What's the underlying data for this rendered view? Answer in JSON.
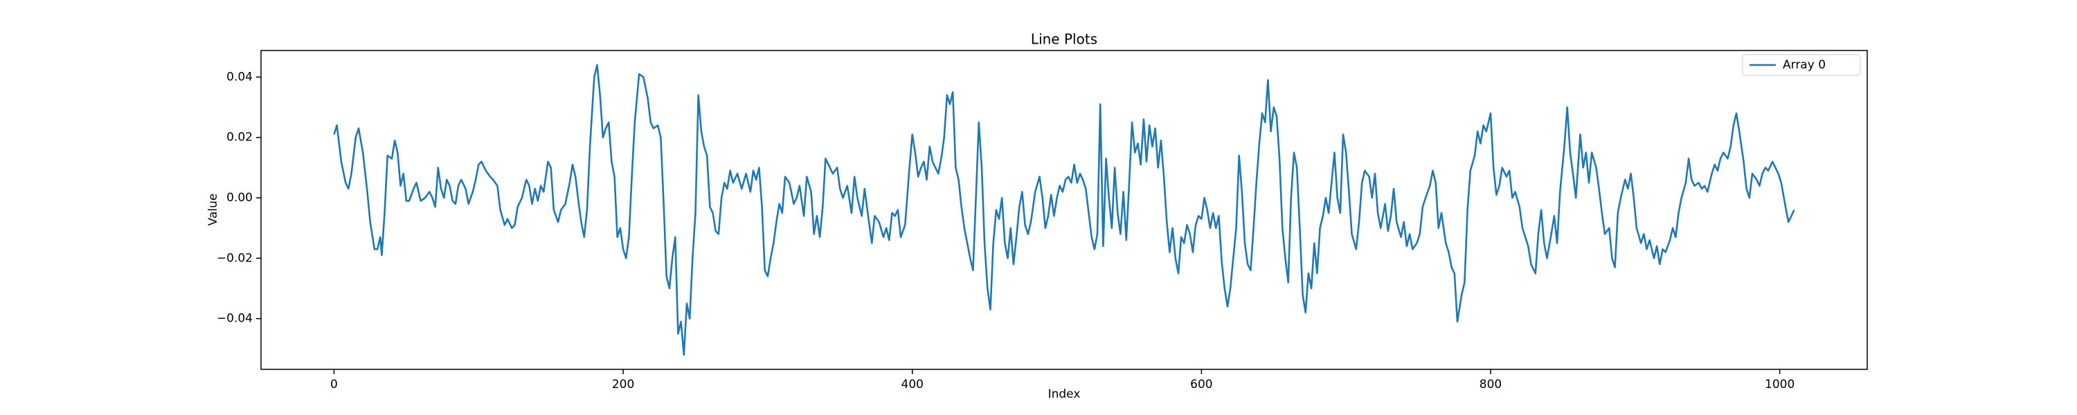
{
  "chart_data": {
    "type": "line",
    "title": "Line Plots",
    "xlabel": "Index",
    "ylabel": "Value",
    "xlim": [
      -50.5,
      1060.5
    ],
    "ylim": [
      -0.0568,
      0.0488
    ],
    "xticks": [
      0,
      200,
      400,
      600,
      800,
      1000
    ],
    "yticks": [
      {
        "value": -0.04,
        "label": "−0.04"
      },
      {
        "value": -0.02,
        "label": "−0.02"
      },
      {
        "value": 0,
        "label": "0.00"
      },
      {
        "value": 0.02,
        "label": "0.02"
      },
      {
        "value": 0.04,
        "label": "0.04"
      }
    ],
    "legend": "upper right",
    "grid": false,
    "x": [
      0,
      2,
      5,
      8,
      10,
      12,
      15,
      17,
      20,
      23,
      25,
      28,
      30,
      32,
      33,
      35,
      37,
      40,
      42,
      44,
      46,
      48,
      50,
      52,
      55,
      57,
      60,
      63,
      66,
      68,
      70,
      72,
      74,
      76,
      78,
      80,
      82,
      84,
      86,
      88,
      91,
      93,
      96,
      98,
      100,
      102,
      105,
      108,
      110,
      113,
      115,
      118,
      120,
      123,
      125,
      127,
      130,
      133,
      135,
      137,
      139,
      141,
      143,
      145,
      148,
      150,
      152,
      155,
      157,
      160,
      163,
      165,
      167,
      169,
      171,
      173,
      175,
      177,
      180,
      182,
      184,
      186,
      188,
      190,
      192,
      194,
      196,
      198,
      200,
      202,
      204,
      206,
      208,
      211,
      214,
      217,
      219,
      221,
      224,
      226,
      228,
      230,
      232,
      234,
      236,
      238,
      240,
      242,
      244,
      246,
      248,
      250,
      252,
      254,
      256,
      258,
      260,
      262,
      264,
      266,
      268,
      270,
      272,
      274,
      276,
      279,
      282,
      285,
      288,
      290,
      292,
      294,
      296,
      298,
      300,
      302,
      304,
      306,
      308,
      310,
      312,
      315,
      318,
      320,
      322,
      325,
      327,
      330,
      332,
      334,
      336,
      338,
      340,
      342,
      345,
      348,
      350,
      352,
      355,
      358,
      360,
      362,
      365,
      367,
      370,
      372,
      374,
      377,
      380,
      382,
      384,
      386,
      388,
      390,
      392,
      395,
      398,
      400,
      402,
      404,
      406,
      408,
      410,
      412,
      414,
      416,
      418,
      420,
      422,
      424,
      426,
      428,
      430,
      432,
      434,
      436,
      438,
      440,
      442,
      444,
      446,
      448,
      450,
      452,
      454,
      456,
      458,
      460,
      462,
      464,
      466,
      468,
      470,
      472,
      474,
      476,
      478,
      480,
      482,
      485,
      488,
      490,
      492,
      494,
      496,
      498,
      500,
      502,
      504,
      506,
      508,
      510,
      512,
      514,
      516,
      518,
      520,
      522,
      524,
      526,
      528,
      530,
      532,
      534,
      536,
      538,
      540,
      542,
      544,
      546,
      548,
      550,
      552,
      554,
      556,
      558,
      560,
      562,
      564,
      566,
      568,
      570,
      572,
      574,
      576,
      578,
      580,
      582,
      584,
      586,
      588,
      590,
      592,
      594,
      596,
      598,
      600,
      602,
      604,
      606,
      608,
      610,
      612,
      614,
      616,
      618,
      620,
      622,
      624,
      626,
      628,
      630,
      632,
      634,
      636,
      638,
      640,
      642,
      644,
      646,
      648,
      650,
      652,
      654,
      656,
      658,
      660,
      662,
      664,
      666,
      668,
      670,
      672,
      674,
      676,
      678,
      680,
      682,
      684,
      686,
      688,
      690,
      692,
      694,
      696,
      698,
      700,
      702,
      704,
      707,
      709,
      711,
      713,
      716,
      718,
      720,
      722,
      724,
      727,
      729,
      731,
      733,
      735,
      738,
      740,
      742,
      744,
      746,
      749,
      751,
      753,
      755,
      758,
      760,
      762,
      764,
      766,
      769,
      771,
      773,
      775,
      777,
      780,
      782,
      784,
      786,
      789,
      791,
      793,
      795,
      797,
      800,
      802,
      804,
      806,
      808,
      811,
      813,
      815,
      817,
      820,
      822,
      824,
      826,
      828,
      831,
      833,
      835,
      837,
      839,
      842,
      844,
      846,
      848,
      851,
      853,
      855,
      857,
      859,
      862,
      864,
      866,
      868,
      870,
      873,
      875,
      877,
      879,
      882,
      884,
      886,
      888,
      890,
      893,
      895,
      897,
      899,
      901,
      904,
      906,
      908,
      910,
      913,
      915,
      917,
      919,
      921,
      924,
      926,
      928,
      930,
      932,
      935,
      937,
      939,
      941,
      944,
      946,
      948,
      950,
      953,
      955,
      957,
      959,
      961,
      964,
      966,
      968,
      970,
      972,
      975,
      977,
      979,
      981,
      984,
      986,
      988,
      990,
      992,
      995,
      997,
      999,
      1001,
      1004,
      1006,
      1008,
      1010
    ],
    "series": [
      {
        "name": "Array 0",
        "color": "#1f77b4",
        "values": [
          0.021,
          0.024,
          0.012,
          0.005,
          0.003,
          0.008,
          0.02,
          0.023,
          0.015,
          0.002,
          -0.008,
          -0.017,
          -0.017,
          -0.013,
          -0.019,
          -0.005,
          0.014,
          0.013,
          0.019,
          0.015,
          0.004,
          0.008,
          -0.001,
          -0.001,
          0.003,
          0.005,
          -0.001,
          0.0,
          0.002,
          0.0,
          -0.003,
          0.01,
          0.003,
          0.0,
          0.006,
          0.004,
          -0.001,
          -0.002,
          0.004,
          0.006,
          0.003,
          -0.002,
          0.002,
          0.006,
          0.011,
          0.012,
          0.009,
          0.007,
          0.006,
          0.004,
          -0.004,
          -0.009,
          -0.007,
          -0.01,
          -0.009,
          -0.003,
          0.0,
          0.006,
          0.004,
          -0.002,
          0.003,
          -0.001,
          0.004,
          0.002,
          0.012,
          0.01,
          -0.004,
          -0.008,
          -0.004,
          -0.002,
          0.005,
          0.011,
          0.007,
          -0.001,
          -0.008,
          -0.013,
          -0.004,
          0.017,
          0.04,
          0.044,
          0.034,
          0.02,
          0.023,
          0.025,
          0.012,
          0.007,
          -0.013,
          -0.01,
          -0.017,
          -0.02,
          -0.013,
          0.007,
          0.025,
          0.041,
          0.04,
          0.033,
          0.025,
          0.023,
          0.024,
          0.02,
          -0.002,
          -0.026,
          -0.03,
          -0.02,
          -0.013,
          -0.045,
          -0.041,
          -0.052,
          -0.035,
          -0.04,
          -0.02,
          -0.005,
          0.034,
          0.022,
          0.017,
          0.014,
          -0.003,
          -0.005,
          -0.011,
          -0.012,
          0.0,
          0.005,
          0.003,
          0.009,
          0.005,
          0.008,
          0.003,
          0.008,
          0.002,
          0.009,
          0.006,
          0.01,
          -0.003,
          -0.024,
          -0.026,
          -0.02,
          -0.015,
          -0.008,
          -0.002,
          -0.005,
          0.007,
          0.005,
          -0.002,
          0.0,
          0.004,
          -0.006,
          0.007,
          0.002,
          -0.012,
          -0.006,
          -0.013,
          -0.003,
          0.013,
          0.011,
          0.008,
          0.01,
          0.003,
          0.0,
          0.004,
          -0.005,
          0.007,
          0.0,
          -0.006,
          0.003,
          -0.008,
          -0.015,
          -0.006,
          -0.008,
          -0.013,
          -0.01,
          -0.014,
          -0.005,
          -0.006,
          -0.004,
          -0.013,
          -0.009,
          0.01,
          0.021,
          0.015,
          0.007,
          0.01,
          0.012,
          0.006,
          0.017,
          0.012,
          0.01,
          0.008,
          0.013,
          0.02,
          0.034,
          0.031,
          0.035,
          0.01,
          0.006,
          -0.003,
          -0.01,
          -0.015,
          -0.02,
          -0.024,
          0.0,
          0.025,
          0.01,
          -0.015,
          -0.03,
          -0.037,
          -0.015,
          -0.004,
          -0.007,
          0.0,
          -0.015,
          -0.02,
          -0.01,
          -0.022,
          -0.013,
          -0.003,
          0.002,
          -0.009,
          -0.012,
          -0.008,
          0.002,
          0.007,
          0.0,
          -0.01,
          -0.006,
          0.001,
          -0.006,
          0.0,
          0.004,
          0.002,
          0.006,
          0.007,
          0.005,
          0.011,
          0.005,
          0.008,
          0.006,
          0.003,
          -0.005,
          -0.013,
          -0.017,
          -0.012,
          0.031,
          -0.016,
          0.013,
          0.0,
          -0.01,
          0.01,
          -0.005,
          -0.012,
          0.002,
          -0.014,
          0.005,
          0.025,
          0.015,
          0.018,
          0.011,
          0.026,
          0.012,
          0.024,
          0.017,
          0.023,
          0.01,
          0.019,
          0.007,
          -0.008,
          -0.018,
          -0.01,
          -0.02,
          -0.025,
          -0.013,
          -0.015,
          -0.009,
          -0.012,
          -0.018,
          -0.009,
          -0.006,
          -0.007,
          0.0,
          -0.004,
          -0.01,
          -0.005,
          -0.01,
          -0.006,
          -0.021,
          -0.03,
          -0.036,
          -0.03,
          -0.02,
          -0.01,
          0.014,
          0.002,
          -0.015,
          -0.022,
          -0.024,
          -0.01,
          0.005,
          0.018,
          0.028,
          0.025,
          0.039,
          0.022,
          0.03,
          0.027,
          0.013,
          -0.01,
          -0.02,
          -0.028,
          0.0,
          0.015,
          0.01,
          -0.01,
          -0.032,
          -0.038,
          -0.025,
          -0.03,
          -0.015,
          -0.025,
          -0.01,
          -0.006,
          0.0,
          -0.005,
          0.005,
          0.015,
          0.0,
          -0.005,
          0.021,
          0.015,
          0.002,
          -0.012,
          -0.017,
          -0.008,
          0.005,
          0.009,
          0.007,
          0.0,
          0.008,
          -0.005,
          -0.01,
          -0.002,
          -0.011,
          -0.006,
          0.003,
          -0.008,
          -0.013,
          -0.008,
          -0.016,
          -0.012,
          -0.017,
          -0.015,
          -0.012,
          -0.003,
          0.0,
          0.004,
          0.009,
          0.005,
          -0.01,
          -0.005,
          -0.015,
          -0.018,
          -0.023,
          -0.025,
          -0.041,
          -0.032,
          -0.028,
          -0.004,
          0.009,
          0.014,
          0.022,
          0.018,
          0.024,
          0.022,
          0.028,
          0.01,
          0.001,
          0.004,
          0.01,
          0.007,
          0.009,
          0.0,
          0.002,
          -0.003,
          -0.01,
          -0.013,
          -0.016,
          -0.022,
          -0.025,
          -0.012,
          -0.004,
          -0.015,
          -0.02,
          -0.012,
          -0.006,
          -0.015,
          0.002,
          0.017,
          0.03,
          0.015,
          0.008,
          0.0,
          0.021,
          0.01,
          0.015,
          0.005,
          0.015,
          0.01,
          0.003,
          -0.005,
          -0.012,
          -0.01,
          -0.02,
          -0.023,
          -0.005,
          0.0,
          0.006,
          0.003,
          0.008,
          0.0,
          -0.01,
          -0.015,
          -0.012,
          -0.017,
          -0.014,
          -0.02,
          -0.016,
          -0.022,
          -0.017,
          -0.018,
          -0.014,
          -0.01,
          -0.013,
          -0.005,
          0.0,
          0.005,
          0.013,
          0.006,
          0.004,
          0.005,
          0.003,
          0.004,
          0.002,
          0.008,
          0.011,
          0.009,
          0.013,
          0.015,
          0.013,
          0.017,
          0.024,
          0.028,
          0.022,
          0.012,
          0.003,
          0.0,
          0.008,
          0.006,
          0.004,
          0.008,
          0.01,
          0.009,
          0.012,
          0.01,
          0.008,
          0.005,
          -0.003,
          -0.008,
          -0.006,
          -0.004
        ]
      }
    ]
  }
}
